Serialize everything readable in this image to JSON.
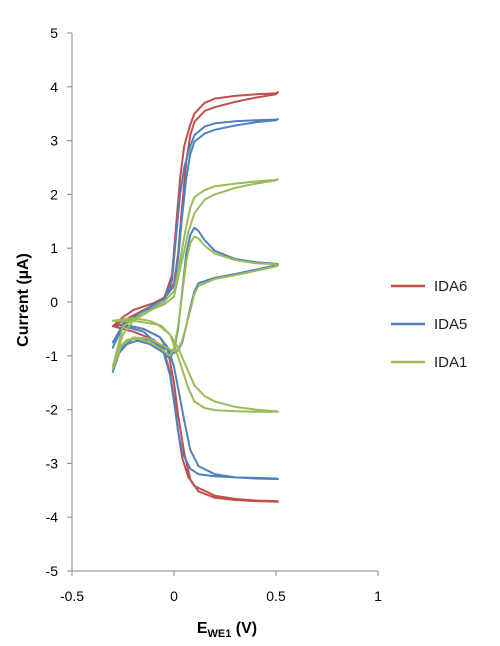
{
  "chart_data": {
    "type": "line",
    "xlabel_main": "E",
    "xlabel_sub": "WE1",
    "xlabel_unit": " (V)",
    "ylabel": "Current (µA)",
    "xlim": [
      -0.5,
      1
    ],
    "ylim": [
      -5,
      5
    ],
    "x_ticks": [
      -0.5,
      0,
      0.5,
      1
    ],
    "x_tick_labels": [
      "-0.5",
      "0",
      "0.5",
      "1"
    ],
    "y_ticks": [
      5,
      4,
      3,
      2,
      1,
      0,
      -1,
      -2,
      -3,
      -4,
      -5
    ],
    "y_tick_labels": [
      "5",
      "4",
      "3",
      "2",
      "1",
      "0",
      "-1",
      "-2",
      "-3",
      "-4",
      "-5"
    ],
    "grid": false,
    "legend_position": "right",
    "series": [
      {
        "name": "IDA6",
        "color": "#c0504d",
        "curves": [
          [
            [
              -0.3,
              -0.45
            ],
            [
              -0.25,
              -0.28
            ],
            [
              -0.2,
              -0.15
            ],
            [
              -0.1,
              -0.02
            ],
            [
              -0.05,
              0.08
            ],
            [
              0,
              0.35
            ],
            [
              0.02,
              0.9
            ],
            [
              0.04,
              1.8
            ],
            [
              0.06,
              2.6
            ],
            [
              0.08,
              3.1
            ],
            [
              0.1,
              3.35
            ],
            [
              0.15,
              3.55
            ],
            [
              0.2,
              3.62
            ],
            [
              0.3,
              3.72
            ],
            [
              0.4,
              3.8
            ],
            [
              0.5,
              3.86
            ],
            [
              0.51,
              3.9
            ],
            [
              0.5,
              3.88
            ],
            [
              0.4,
              3.86
            ],
            [
              0.3,
              3.83
            ],
            [
              0.2,
              3.78
            ],
            [
              0.15,
              3.7
            ],
            [
              0.1,
              3.5
            ],
            [
              0.08,
              3.3
            ],
            [
              0.05,
              2.9
            ],
            [
              0.03,
              2.3
            ],
            [
              0.01,
              1.4
            ],
            [
              -0.01,
              0.5
            ],
            [
              -0.05,
              0.05
            ],
            [
              -0.1,
              -0.05
            ],
            [
              -0.2,
              -0.25
            ],
            [
              -0.3,
              -0.45
            ]
          ],
          [
            [
              -0.3,
              -0.45
            ],
            [
              -0.25,
              -0.5
            ],
            [
              -0.2,
              -0.55
            ],
            [
              -0.1,
              -0.7
            ],
            [
              -0.05,
              -0.9
            ],
            [
              -0.02,
              -1.3
            ],
            [
              0,
              -1.8
            ],
            [
              0.02,
              -2.4
            ],
            [
              0.04,
              -2.9
            ],
            [
              0.07,
              -3.25
            ],
            [
              0.1,
              -3.42
            ],
            [
              0.2,
              -3.6
            ],
            [
              0.3,
              -3.66
            ],
            [
              0.4,
              -3.69
            ],
            [
              0.5,
              -3.7
            ],
            [
              0.51,
              -3.71
            ],
            [
              0.5,
              -3.71
            ],
            [
              0.4,
              -3.7
            ],
            [
              0.3,
              -3.68
            ],
            [
              0.2,
              -3.64
            ],
            [
              0.12,
              -3.52
            ],
            [
              0.08,
              -3.3
            ],
            [
              0.05,
              -2.8
            ],
            [
              0.02,
              -2.1
            ],
            [
              0,
              -1.5
            ],
            [
              -0.03,
              -0.9
            ],
            [
              -0.07,
              -0.65
            ],
            [
              -0.15,
              -0.5
            ],
            [
              -0.25,
              -0.42
            ],
            [
              -0.3,
              -0.45
            ]
          ]
        ]
      },
      {
        "name": "IDA5",
        "color": "#4f81bd",
        "curves": [
          [
            [
              -0.3,
              -0.85
            ],
            [
              -0.25,
              -0.45
            ],
            [
              -0.2,
              -0.28
            ],
            [
              -0.1,
              -0.05
            ],
            [
              -0.05,
              0.05
            ],
            [
              0,
              0.3
            ],
            [
              0.02,
              0.8
            ],
            [
              0.04,
              1.6
            ],
            [
              0.06,
              2.3
            ],
            [
              0.08,
              2.75
            ],
            [
              0.1,
              2.98
            ],
            [
              0.15,
              3.13
            ],
            [
              0.2,
              3.2
            ],
            [
              0.3,
              3.28
            ],
            [
              0.4,
              3.34
            ],
            [
              0.5,
              3.38
            ],
            [
              0.51,
              3.4
            ],
            [
              0.5,
              3.39
            ],
            [
              0.4,
              3.38
            ],
            [
              0.3,
              3.36
            ],
            [
              0.2,
              3.32
            ],
            [
              0.15,
              3.26
            ],
            [
              0.1,
              3.1
            ],
            [
              0.08,
              2.9
            ],
            [
              0.05,
              2.5
            ],
            [
              0.03,
              2.0
            ],
            [
              0.01,
              1.2
            ],
            [
              -0.01,
              0.4
            ],
            [
              -0.05,
              0.0
            ],
            [
              -0.15,
              -0.2
            ],
            [
              -0.25,
              -0.4
            ],
            [
              -0.3,
              -0.85
            ]
          ],
          [
            [
              -0.3,
              -1.3
            ],
            [
              -0.27,
              -0.95
            ],
            [
              -0.23,
              -0.78
            ],
            [
              -0.18,
              -0.72
            ],
            [
              -0.12,
              -0.78
            ],
            [
              -0.06,
              -0.92
            ],
            [
              -0.02,
              -1.05
            ],
            [
              0.0,
              -0.9
            ],
            [
              0.02,
              -0.5
            ],
            [
              0.04,
              0.2
            ],
            [
              0.06,
              0.9
            ],
            [
              0.08,
              1.25
            ],
            [
              0.1,
              1.38
            ],
            [
              0.12,
              1.32
            ],
            [
              0.15,
              1.15
            ],
            [
              0.2,
              0.95
            ],
            [
              0.3,
              0.8
            ],
            [
              0.4,
              0.74
            ],
            [
              0.5,
              0.71
            ],
            [
              0.51,
              0.7
            ],
            [
              0.5,
              0.68
            ],
            [
              0.4,
              0.6
            ],
            [
              0.3,
              0.52
            ],
            [
              0.2,
              0.45
            ],
            [
              0.12,
              0.35
            ],
            [
              0.1,
              0.2
            ],
            [
              0.08,
              -0.1
            ],
            [
              0.06,
              -0.45
            ],
            [
              0.04,
              -0.75
            ],
            [
              0.02,
              -0.9
            ],
            [
              0.0,
              -0.95
            ],
            [
              -0.05,
              -0.85
            ],
            [
              -0.12,
              -0.7
            ],
            [
              -0.2,
              -0.68
            ],
            [
              -0.26,
              -0.85
            ],
            [
              -0.3,
              -1.3
            ]
          ],
          [
            [
              -0.3,
              -0.75
            ],
            [
              -0.25,
              -0.45
            ],
            [
              -0.15,
              -0.55
            ],
            [
              -0.1,
              -0.72
            ],
            [
              -0.05,
              -0.95
            ],
            [
              -0.02,
              -1.35
            ],
            [
              0,
              -1.85
            ],
            [
              0.02,
              -2.4
            ],
            [
              0.04,
              -2.8
            ],
            [
              0.08,
              -3.1
            ],
            [
              0.12,
              -3.2
            ],
            [
              0.2,
              -3.24
            ],
            [
              0.3,
              -3.26
            ],
            [
              0.4,
              -3.27
            ],
            [
              0.5,
              -3.28
            ],
            [
              0.51,
              -3.29
            ],
            [
              0.5,
              -3.29
            ],
            [
              0.4,
              -3.28
            ],
            [
              0.3,
              -3.26
            ],
            [
              0.2,
              -3.2
            ],
            [
              0.12,
              -3.05
            ],
            [
              0.08,
              -2.75
            ],
            [
              0.05,
              -2.2
            ],
            [
              0.02,
              -1.6
            ],
            [
              0,
              -1.2
            ],
            [
              -0.03,
              -0.85
            ],
            [
              -0.07,
              -0.65
            ],
            [
              -0.15,
              -0.5
            ],
            [
              -0.25,
              -0.42
            ],
            [
              -0.3,
              -0.75
            ]
          ]
        ]
      },
      {
        "name": "IDA1",
        "color": "#9bbb59",
        "curves": [
          [
            [
              -0.3,
              -1.25
            ],
            [
              -0.27,
              -0.85
            ],
            [
              -0.23,
              -0.7
            ],
            [
              -0.18,
              -0.68
            ],
            [
              -0.12,
              -0.75
            ],
            [
              -0.06,
              -0.88
            ],
            [
              -0.02,
              -1.0
            ],
            [
              0.0,
              -0.85
            ],
            [
              0.02,
              -0.45
            ],
            [
              0.04,
              0.15
            ],
            [
              0.06,
              0.75
            ],
            [
              0.08,
              1.1
            ],
            [
              0.1,
              1.22
            ],
            [
              0.12,
              1.18
            ],
            [
              0.15,
              1.05
            ],
            [
              0.2,
              0.9
            ],
            [
              0.3,
              0.78
            ],
            [
              0.4,
              0.72
            ],
            [
              0.5,
              0.7
            ],
            [
              0.51,
              0.68
            ],
            [
              0.5,
              0.66
            ],
            [
              0.4,
              0.58
            ],
            [
              0.3,
              0.5
            ],
            [
              0.2,
              0.43
            ],
            [
              0.12,
              0.3
            ],
            [
              0.1,
              0.15
            ],
            [
              0.08,
              -0.15
            ],
            [
              0.06,
              -0.45
            ],
            [
              0.04,
              -0.72
            ],
            [
              0.02,
              -0.88
            ],
            [
              0.0,
              -0.92
            ],
            [
              -0.05,
              -0.82
            ],
            [
              -0.12,
              -0.68
            ],
            [
              -0.2,
              -0.66
            ],
            [
              -0.26,
              -0.82
            ],
            [
              -0.3,
              -1.25
            ]
          ],
          [
            [
              -0.3,
              -1.2
            ],
            [
              -0.25,
              -0.6
            ],
            [
              -0.2,
              -0.35
            ],
            [
              -0.1,
              -0.12
            ],
            [
              -0.05,
              0.0
            ],
            [
              0,
              0.2
            ],
            [
              0.02,
              0.55
            ],
            [
              0.04,
              1.0
            ],
            [
              0.06,
              1.4
            ],
            [
              0.08,
              1.75
            ],
            [
              0.1,
              1.95
            ],
            [
              0.15,
              2.08
            ],
            [
              0.2,
              2.15
            ],
            [
              0.3,
              2.2
            ],
            [
              0.4,
              2.24
            ],
            [
              0.5,
              2.27
            ],
            [
              0.51,
              2.28
            ],
            [
              0.5,
              2.26
            ],
            [
              0.4,
              2.2
            ],
            [
              0.3,
              2.12
            ],
            [
              0.2,
              2.0
            ],
            [
              0.15,
              1.9
            ],
            [
              0.1,
              1.65
            ],
            [
              0.07,
              1.3
            ],
            [
              0.05,
              0.95
            ],
            [
              0.02,
              0.45
            ],
            [
              0,
              0.1
            ],
            [
              -0.05,
              -0.05
            ],
            [
              -0.15,
              -0.2
            ],
            [
              -0.25,
              -0.45
            ],
            [
              -0.3,
              -1.2
            ]
          ],
          [
            [
              -0.3,
              -0.35
            ],
            [
              -0.2,
              -0.3
            ],
            [
              -0.12,
              -0.35
            ],
            [
              -0.06,
              -0.45
            ],
            [
              -0.02,
              -0.6
            ],
            [
              0.02,
              -0.85
            ],
            [
              0.06,
              -1.2
            ],
            [
              0.1,
              -1.55
            ],
            [
              0.15,
              -1.75
            ],
            [
              0.2,
              -1.85
            ],
            [
              0.3,
              -1.95
            ],
            [
              0.4,
              -2.0
            ],
            [
              0.5,
              -2.03
            ],
            [
              0.51,
              -2.04
            ],
            [
              0.5,
              -2.04
            ],
            [
              0.4,
              -2.04
            ],
            [
              0.3,
              -2.03
            ],
            [
              0.2,
              -2.01
            ],
            [
              0.15,
              -1.97
            ],
            [
              0.1,
              -1.85
            ],
            [
              0.07,
              -1.6
            ],
            [
              0.04,
              -1.25
            ],
            [
              0.01,
              -0.9
            ],
            [
              -0.02,
              -0.6
            ],
            [
              -0.08,
              -0.42
            ],
            [
              -0.18,
              -0.36
            ],
            [
              -0.3,
              -0.35
            ]
          ]
        ]
      }
    ]
  }
}
